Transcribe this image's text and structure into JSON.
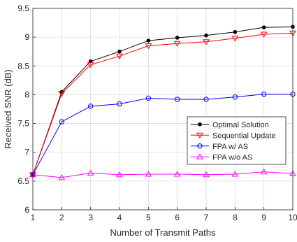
{
  "chart_data": {
    "type": "line",
    "title": "",
    "xlabel": "Number of Transmit Paths",
    "ylabel": "Received SNR (dB)",
    "x": [
      1,
      2,
      3,
      4,
      5,
      6,
      7,
      8,
      9,
      10
    ],
    "xlim": [
      1,
      10
    ],
    "ylim": [
      6,
      9.5
    ],
    "xticks": [
      1,
      2,
      3,
      4,
      5,
      6,
      7,
      8,
      9,
      10
    ],
    "yticks": [
      6,
      6.5,
      7,
      7.5,
      8,
      8.5,
      9,
      9.5
    ],
    "grid": true,
    "legend_position": "right",
    "series": [
      {
        "name": "Optimal Solution",
        "color": "#000000",
        "marker": "dot",
        "values": [
          6.61,
          8.05,
          8.58,
          8.75,
          8.94,
          8.99,
          9.03,
          9.09,
          9.17,
          9.18
        ]
      },
      {
        "name": "Sequential Update",
        "color": "#ff0000",
        "marker": "triangle-down",
        "values": [
          6.61,
          8.02,
          8.52,
          8.67,
          8.85,
          8.89,
          8.92,
          8.98,
          9.05,
          9.07
        ]
      },
      {
        "name": "FPA w/ AS",
        "color": "#0000ff",
        "marker": "circle",
        "values": [
          6.61,
          7.53,
          7.8,
          7.84,
          7.94,
          7.92,
          7.92,
          7.96,
          8.01,
          8.01
        ]
      },
      {
        "name": "FPA w/o AS",
        "color": "#ff00ff",
        "marker": "triangle-up",
        "values": [
          6.61,
          6.56,
          6.64,
          6.61,
          6.62,
          6.62,
          6.61,
          6.62,
          6.66,
          6.63
        ]
      }
    ]
  }
}
